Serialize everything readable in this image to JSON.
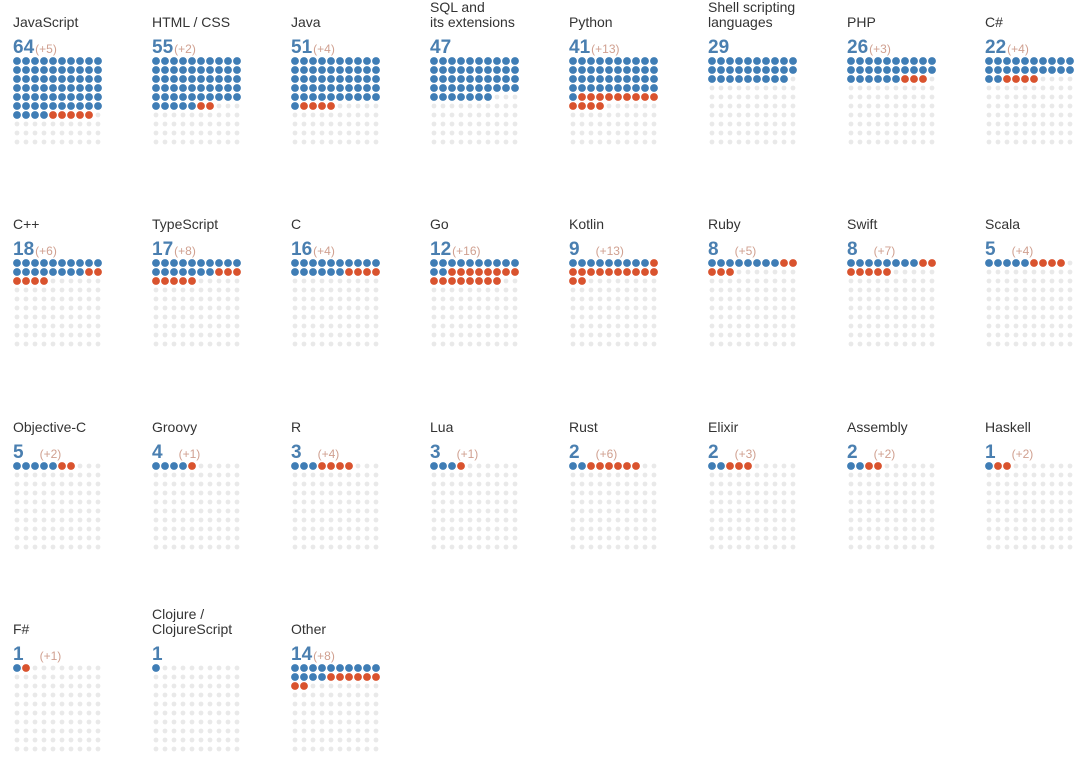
{
  "chart_data": {
    "type": "waffle",
    "description_note": "Each panel is a 10x10 waffle: blue dots = current count, red dots = additional (+N) count.",
    "colors": {
      "current": "#3f7db5",
      "added": "#d9532e",
      "empty": "#e9e9e9"
    },
    "panels": [
      {
        "name": "JavaScript",
        "value": 64,
        "delta": "(+5)"
      },
      {
        "name": "HTML / CSS",
        "value": 55,
        "delta": "(+2)"
      },
      {
        "name": "Java",
        "value": 51,
        "delta": "(+4)"
      },
      {
        "name": "SQL and\nits extensions",
        "value": 47,
        "delta": ""
      },
      {
        "name": "Python",
        "value": 41,
        "delta": "(+13)"
      },
      {
        "name": "Shell scripting\nlanguages",
        "value": 29,
        "delta": ""
      },
      {
        "name": "PHP",
        "value": 26,
        "delta": "(+3)"
      },
      {
        "name": "C#",
        "value": 22,
        "delta": "(+4)"
      },
      {
        "name": "C++",
        "value": 18,
        "delta": "(+6)"
      },
      {
        "name": "TypeScript",
        "value": 17,
        "delta": "(+8)"
      },
      {
        "name": "C",
        "value": 16,
        "delta": "(+4)"
      },
      {
        "name": "Go",
        "value": 12,
        "delta": "(+16)"
      },
      {
        "name": "Kotlin",
        "value": 9,
        "delta": "(+13)"
      },
      {
        "name": "Ruby",
        "value": 8,
        "delta": "(+5)"
      },
      {
        "name": "Swift",
        "value": 8,
        "delta": "(+7)"
      },
      {
        "name": "Scala",
        "value": 5,
        "delta": "(+4)"
      },
      {
        "name": "Objective-C",
        "value": 5,
        "delta": "(+2)"
      },
      {
        "name": "Groovy",
        "value": 4,
        "delta": "(+1)"
      },
      {
        "name": "R",
        "value": 3,
        "delta": "(+4)"
      },
      {
        "name": "Lua",
        "value": 3,
        "delta": "(+1)"
      },
      {
        "name": "Rust",
        "value": 2,
        "delta": "(+6)"
      },
      {
        "name": "Elixir",
        "value": 2,
        "delta": "(+3)"
      },
      {
        "name": "Assembly",
        "value": 2,
        "delta": "(+2)"
      },
      {
        "name": "Haskell",
        "value": 1,
        "delta": "(+2)"
      },
      {
        "name": "F#",
        "value": 1,
        "delta": "(+1)"
      },
      {
        "name": "Clojure /\nClojureScript",
        "value": 1,
        "delta": ""
      },
      {
        "name": "Other",
        "value": 14,
        "delta": "(+8)"
      }
    ]
  }
}
